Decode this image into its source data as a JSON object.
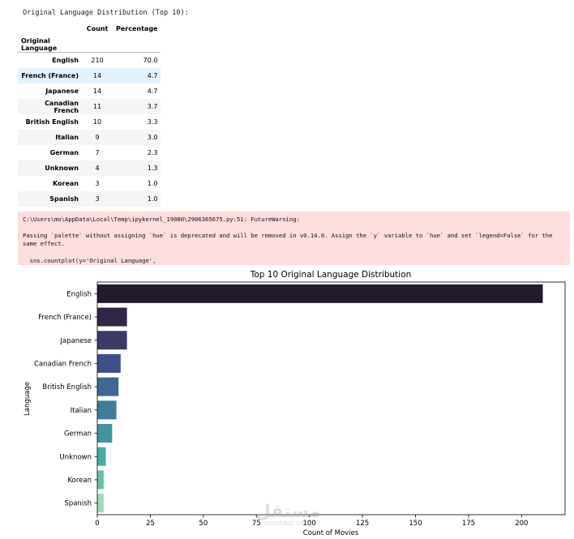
{
  "output_header": "Original Language Distribution (Top 10):",
  "table": {
    "columns": [
      "Count",
      "Percentage"
    ],
    "index_name": "Original Language",
    "rows": [
      {
        "language": "English",
        "count": "210",
        "percentage": "70.0"
      },
      {
        "language": "French (France)",
        "count": "14",
        "percentage": "4.7"
      },
      {
        "language": "Japanese",
        "count": "14",
        "percentage": "4.7"
      },
      {
        "language": "Canadian French",
        "count": "11",
        "percentage": "3.7"
      },
      {
        "language": "British English",
        "count": "10",
        "percentage": "3.3"
      },
      {
        "language": "Italian",
        "count": "9",
        "percentage": "3.0"
      },
      {
        "language": "German",
        "count": "7",
        "percentage": "2.3"
      },
      {
        "language": "Unknown",
        "count": "4",
        "percentage": "1.3"
      },
      {
        "language": "Korean",
        "count": "3",
        "percentage": "1.0"
      },
      {
        "language": "Spanish",
        "count": "3",
        "percentage": "1.0"
      }
    ]
  },
  "warning": {
    "path_line": "C:\\Users\\mo\\AppData\\Local\\Temp\\ipykernel_19080\\2906365675.py:51: FutureWarning:",
    "message_line1": "Passing `palette` without assigning `hue` is deprecated and will be removed in v0.14.0. Assign the `y` variable to `hue` and set `legend=False` for the",
    "message_line2": "same effect.",
    "code_line": "  sns.countplot(y='Original Language',"
  },
  "watermark": {
    "arabic": "مستقل",
    "latin": "mostaql.com"
  },
  "chart_data": {
    "type": "bar",
    "orientation": "horizontal",
    "title": "Top 10 Original Language Distribution",
    "xlabel": "Count of Movies",
    "ylabel": "Language",
    "categories": [
      "English",
      "French (France)",
      "Japanese",
      "Canadian French",
      "British English",
      "Italian",
      "German",
      "Unknown",
      "Korean",
      "Spanish"
    ],
    "values": [
      210,
      14,
      14,
      11,
      10,
      9,
      7,
      4,
      3,
      3
    ],
    "xlim": [
      0,
      220.5
    ],
    "xticks": [
      0,
      25,
      50,
      75,
      100,
      125,
      150,
      175,
      200
    ],
    "colors": [
      "#231a2c",
      "#312645",
      "#3b3a66",
      "#3e4f87",
      "#3e6794",
      "#3e7c99",
      "#3f949e",
      "#46aba0",
      "#63c1a6",
      "#a0d8bc"
    ]
  }
}
